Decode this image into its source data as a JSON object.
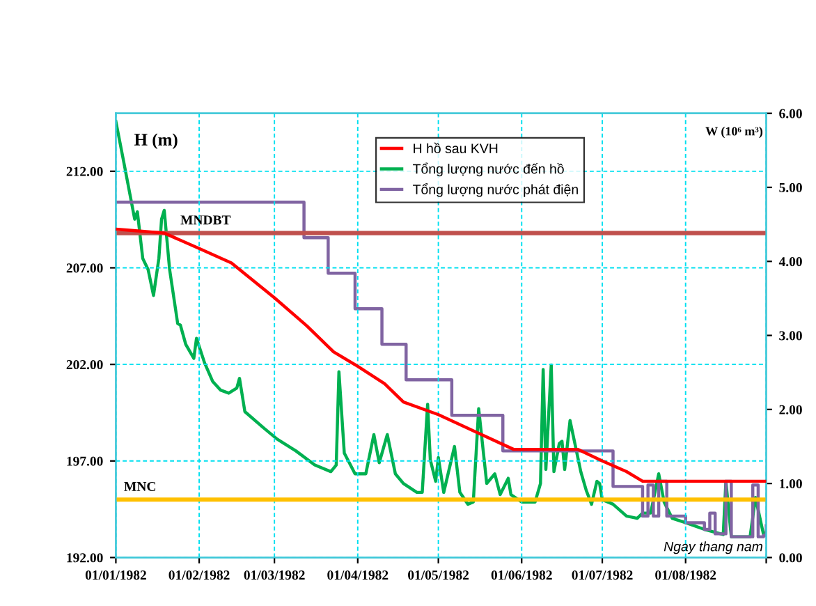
{
  "chart_data": {
    "type": "line",
    "ylabel": "H (m)",
    "y2label": "W (10⁶ m³)",
    "xlabel": "Ngay thang nam",
    "xlim": [
      "1982-01-01",
      "1982-08-31"
    ],
    "xticks": [
      {
        "value": "1982-01-01",
        "label": "01/01/1982"
      },
      {
        "value": "1982-02-01",
        "label": "01/02/1982"
      },
      {
        "value": "1982-03-01",
        "label": "01/03/1982"
      },
      {
        "value": "1982-04-01",
        "label": "01/04/1982"
      },
      {
        "value": "1982-05-01",
        "label": "01/05/1982"
      },
      {
        "value": "1982-06-01",
        "label": "01/06/1982"
      },
      {
        "value": "1982-07-01",
        "label": "01/07/1982"
      },
      {
        "value": "1982-08-01",
        "label": "01/08/1982"
      },
      {
        "value": "1982-08-31",
        "label": null
      }
    ],
    "ylim": [
      192,
      215
    ],
    "yticks": [
      {
        "value": 192,
        "label": "192.00"
      },
      {
        "value": 197,
        "label": "197.00"
      },
      {
        "value": 202,
        "label": "202.00"
      },
      {
        "value": 207,
        "label": "207.00"
      },
      {
        "value": 212,
        "label": "212.00"
      }
    ],
    "y2lim": [
      0,
      6
    ],
    "y2ticks": [
      {
        "value": 0,
        "label": "0.00"
      },
      {
        "value": 1,
        "label": "1.00"
      },
      {
        "value": 2,
        "label": "2.00"
      },
      {
        "value": 3,
        "label": "3.00"
      },
      {
        "value": 4,
        "label": "4.00"
      },
      {
        "value": 5,
        "label": "5.00"
      },
      {
        "value": 6,
        "label": "6.00"
      }
    ],
    "grid": true,
    "legend": "top",
    "ref_lines": [
      {
        "axis": "y",
        "value": 208.8,
        "label": "MNDBT",
        "color": "#c0504d"
      },
      {
        "axis": "y",
        "value": 195.0,
        "label": "MNC",
        "color": "#ffc000"
      }
    ],
    "series": [
      {
        "name": "H hồ sau KVH",
        "color": "#ff0000",
        "x": [
          "1982-01-01",
          "1982-01-10",
          "1982-01-19",
          "1982-02-01",
          "1982-02-13",
          "1982-03-01",
          "1982-03-13",
          "1982-03-23",
          "1982-04-01",
          "1982-04-11",
          "1982-04-18",
          "1982-05-01",
          "1982-05-15",
          "1982-05-29",
          "1982-06-06",
          "1982-06-22",
          "1982-07-01",
          "1982-07-10",
          "1982-07-16",
          "1982-08-31"
        ],
        "values": [
          209.0,
          208.9,
          208.8,
          208.0,
          207.25,
          205.45,
          204.0,
          202.65,
          201.9,
          201.0,
          200.05,
          199.4,
          198.5,
          197.6,
          197.6,
          197.6,
          197.0,
          196.45,
          195.95,
          195.95
        ]
      },
      {
        "name": "Tổng lượng nước đến hồ",
        "color": "#00b050",
        "type": "line",
        "axis": "y2",
        "x": [
          "1982-01-01",
          "1982-01-04",
          "1982-01-08",
          "1982-01-09",
          "1982-01-11",
          "1982-01-13",
          "1982-01-15",
          "1982-01-17",
          "1982-01-18",
          "1982-01-19",
          "1982-01-21",
          "1982-01-24",
          "1982-01-25",
          "1982-01-27",
          "1982-01-30",
          "1982-01-31",
          "1982-02-03",
          "1982-02-06",
          "1982-02-09",
          "1982-02-12",
          "1982-02-15",
          "1982-02-16",
          "1982-02-18",
          "1982-02-25",
          "1982-03-02",
          "1982-03-09",
          "1982-03-16",
          "1982-03-22",
          "1982-03-24",
          "1982-03-25",
          "1982-03-27",
          "1982-03-31",
          "1982-04-04",
          "1982-04-07",
          "1982-04-09",
          "1982-04-12",
          "1982-04-15",
          "1982-04-18",
          "1982-04-23",
          "1982-04-25",
          "1982-04-27",
          "1982-04-28",
          "1982-04-30",
          "1982-05-01",
          "1982-05-03",
          "1982-05-07",
          "1982-05-09",
          "1982-05-12",
          "1982-05-14",
          "1982-05-16",
          "1982-05-19",
          "1982-05-22",
          "1982-05-24",
          "1982-05-27",
          "1982-05-28",
          "1982-06-01",
          "1982-06-06",
          "1982-06-08",
          "1982-06-09",
          "1982-06-10",
          "1982-06-12",
          "1982-06-13",
          "1982-06-15",
          "1982-06-16",
          "1982-06-17",
          "1982-06-19",
          "1982-06-23",
          "1982-06-25",
          "1982-06-27",
          "1982-06-29",
          "1982-06-30",
          "1982-07-01",
          "1982-07-05",
          "1982-07-10",
          "1982-07-14",
          "1982-07-16",
          "1982-07-19",
          "1982-07-22",
          "1982-07-24",
          "1982-07-27",
          "1982-08-01",
          "1982-08-08",
          "1982-08-15",
          "1982-08-16",
          "1982-08-18",
          "1982-08-25",
          "1982-08-27",
          "1982-08-30",
          "1982-08-31"
        ],
        "values": [
          5.89,
          5.33,
          4.57,
          4.67,
          4.04,
          3.89,
          3.54,
          4.04,
          4.57,
          4.69,
          3.89,
          3.16,
          3.14,
          2.88,
          2.69,
          2.96,
          2.63,
          2.38,
          2.26,
          2.22,
          2.29,
          2.42,
          1.97,
          1.75,
          1.6,
          1.44,
          1.25,
          1.16,
          1.25,
          2.51,
          1.41,
          1.13,
          1.13,
          1.66,
          1.28,
          1.66,
          1.13,
          1.0,
          0.88,
          0.88,
          2.07,
          1.32,
          1.03,
          1.35,
          0.88,
          1.5,
          0.88,
          0.72,
          0.75,
          2.01,
          1.0,
          1.13,
          0.85,
          1.07,
          0.85,
          0.75,
          0.75,
          1.0,
          2.54,
          1.19,
          2.6,
          1.16,
          1.54,
          1.57,
          1.19,
          1.85,
          1.16,
          0.91,
          0.72,
          1.03,
          1.0,
          0.78,
          0.72,
          0.56,
          0.53,
          0.6,
          0.6,
          1.13,
          0.75,
          0.53,
          0.47,
          0.38,
          0.31,
          1.03,
          0.28,
          0.28,
          0.81,
          0.31,
          0.34
        ]
      },
      {
        "name": "Tổng lượng nước phát điện",
        "color": "#8064a2",
        "type": "step",
        "axis": "y2",
        "x": [
          "1982-01-01",
          "1982-03-12",
          "1982-03-21",
          "1982-03-31",
          "1982-04-10",
          "1982-04-19",
          "1982-05-06",
          "1982-05-25",
          "1982-07-05",
          "1982-07-16",
          "1982-07-18",
          "1982-07-20",
          "1982-07-22",
          "1982-07-25",
          "1982-08-01",
          "1982-08-08",
          "1982-08-10",
          "1982-08-12",
          "1982-08-16",
          "1982-08-18",
          "1982-08-25",
          "1982-08-26",
          "1982-08-28",
          "1982-08-30",
          "1982-08-31"
        ],
        "values": [
          4.8,
          4.32,
          3.84,
          3.36,
          2.88,
          2.4,
          1.92,
          1.44,
          0.96,
          0.56,
          0.98,
          0.56,
          1.03,
          0.56,
          0.47,
          0.38,
          0.6,
          0.32,
          1.03,
          0.28,
          0.28,
          0.98,
          0.28,
          0.3,
          0.43
        ]
      }
    ]
  }
}
